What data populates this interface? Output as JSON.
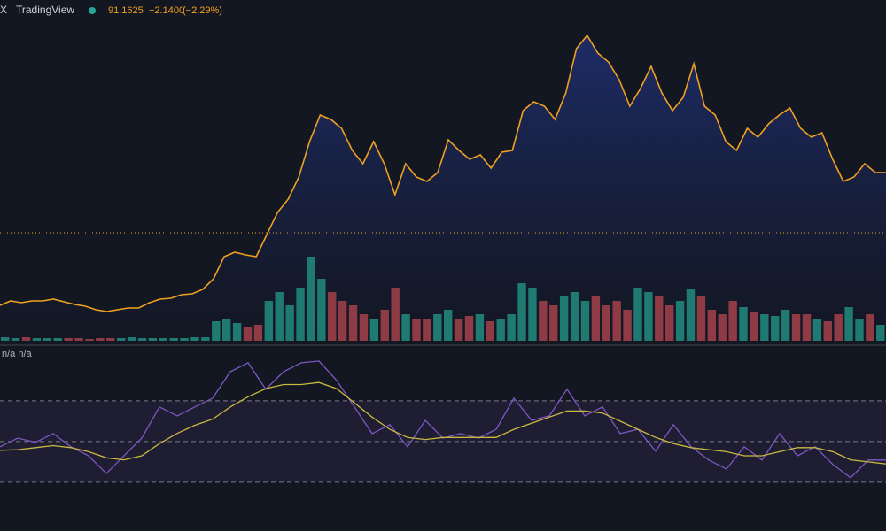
{
  "chart_data": [
    {
      "type": "line",
      "symbol": "X",
      "source": "TradingView",
      "last_price": "91.1625",
      "change": "−2.1400",
      "change_pct": "(−2.29%)",
      "color": "#f0a020",
      "ylim": [
        0,
        388
      ],
      "ref_line": 125,
      "values": [
        43,
        48,
        46,
        48,
        48,
        50,
        47,
        44,
        42,
        38,
        36,
        38,
        40,
        40,
        46,
        50,
        51,
        55,
        56,
        61,
        73,
        98,
        103,
        100,
        98,
        123,
        148,
        163,
        188,
        228,
        258,
        253,
        243,
        218,
        203,
        228,
        203,
        168,
        203,
        188,
        183,
        193,
        230,
        218,
        208,
        213,
        198,
        216,
        218,
        263,
        273,
        268,
        253,
        283,
        333,
        348,
        328,
        318,
        298,
        268,
        288,
        313,
        283,
        263,
        278,
        316,
        268,
        258,
        228,
        218,
        243,
        233,
        248,
        258,
        266,
        243,
        233,
        238,
        208,
        183,
        188,
        203,
        193,
        193
      ],
      "volume": {
        "ylim": [
          0,
          100
        ],
        "up_color": "#1f7a72",
        "down_color": "#8e3b45",
        "values": [
          4,
          3,
          4,
          3,
          3,
          3,
          3,
          3,
          2,
          3,
          3,
          3,
          4,
          3,
          3,
          3,
          3,
          3,
          4,
          4,
          22,
          24,
          20,
          15,
          18,
          45,
          55,
          40,
          60,
          95,
          70,
          55,
          45,
          40,
          30,
          25,
          35,
          60,
          30,
          25,
          25,
          30,
          35,
          25,
          28,
          30,
          22,
          25,
          30,
          65,
          60,
          45,
          40,
          50,
          55,
          45,
          50,
          40,
          45,
          35,
          60,
          55,
          50,
          40,
          45,
          58,
          50,
          35,
          30,
          45,
          38,
          32,
          30,
          28,
          35,
          30,
          30,
          25,
          22,
          30,
          38,
          25,
          30,
          18
        ]
      }
    },
    {
      "type": "line",
      "label": "n/a n/a",
      "ylim": [
        6,
        96.5
      ],
      "bands": [
        70,
        50,
        30
      ],
      "series": [
        {
          "color": "#7e57c2",
          "values": [
            47.4,
            51.7,
            49.6,
            53.9,
            47.4,
            43,
            34.3,
            43,
            51.7,
            67,
            62.6,
            67,
            71.3,
            84.3,
            88.7,
            75.7,
            84.3,
            88.7,
            89.6,
            80,
            67,
            53.9,
            58.3,
            47.4,
            60.4,
            51.7,
            53.9,
            51.7,
            56,
            71.3,
            60.4,
            62.6,
            75.7,
            62.6,
            67,
            53.9,
            56,
            45.2,
            58.3,
            47.4,
            40.9,
            36.5,
            47.4,
            40.9,
            53.9,
            43,
            47.4,
            38.7,
            32.2,
            40.9,
            40.9
          ]
        },
        {
          "color": "#c9b940",
          "values": [
            45.7,
            46,
            47,
            48,
            47,
            45,
            42,
            41,
            43,
            49,
            54,
            58,
            61,
            67,
            72,
            76,
            78,
            78,
            79,
            76,
            69,
            62,
            56,
            52,
            51,
            52,
            52,
            52,
            52,
            56,
            59,
            62,
            65,
            65,
            64,
            60,
            56,
            52,
            49,
            47,
            46,
            45,
            43,
            43,
            45,
            47,
            47,
            45,
            41,
            40,
            39
          ]
        }
      ]
    }
  ]
}
